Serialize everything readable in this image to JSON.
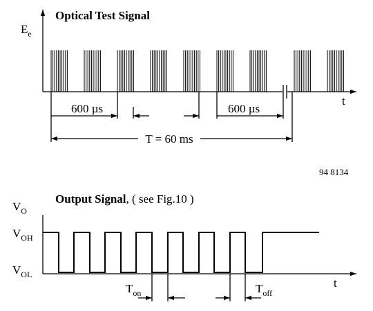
{
  "top": {
    "title": "Optical Test Signal",
    "y_label": {
      "main": "E",
      "sub": "e"
    },
    "x_label": "t",
    "interval_1": "600 µs",
    "interval_2": "600 µs",
    "period": "T = 60 ms"
  },
  "figure_code": "94 8134",
  "bottom": {
    "title": "Output Signal",
    "title_note": ", ( see Fig.10 )",
    "y_label": {
      "main": "V",
      "sub": "O"
    },
    "level_high": {
      "main": "V",
      "sub": "OH"
    },
    "level_low": {
      "main": "V",
      "sub": "OL"
    },
    "x_label": "t",
    "t_on": {
      "main": "T",
      "sub": "on"
    },
    "t_off": {
      "main": "T",
      "sub": "off"
    }
  }
}
